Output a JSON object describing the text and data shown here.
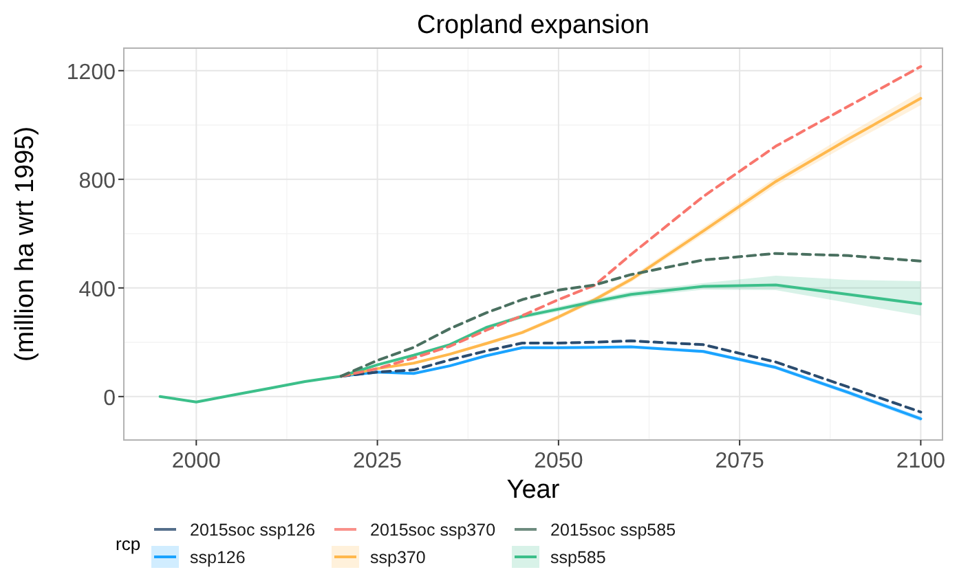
{
  "chart_data": {
    "type": "line",
    "title": "Cropland expansion",
    "xlabel": "Year",
    "ylabel": "(million ha wrt 1995)",
    "legend_title": "rcp",
    "legend": "bottom",
    "grid": true,
    "xlim": [
      1990,
      2103
    ],
    "xticks": [
      2000,
      2025,
      2050,
      2075,
      2100
    ],
    "ylim": [
      -160,
      1283
    ],
    "yticks": [
      0,
      400,
      800,
      1200
    ],
    "x": [
      1995,
      2000,
      2005,
      2010,
      2015,
      2020,
      2025,
      2030,
      2035,
      2040,
      2045,
      2050,
      2055,
      2060,
      2070,
      2080,
      2090,
      2100
    ],
    "series": [
      {
        "name": "2015soc ssp126",
        "color": "#2b4c6f",
        "line_style": "dashed",
        "values": [
          null,
          null,
          null,
          null,
          null,
          75,
          90,
          98,
          135,
          168,
          197,
          197,
          200,
          205,
          191,
          127,
          35,
          -57
        ]
      },
      {
        "name": "2015soc ssp370",
        "color": "#f8766d",
        "line_style": "dashed",
        "values": [
          null,
          null,
          null,
          null,
          null,
          75,
          103,
          142,
          185,
          244,
          298,
          357,
          410,
          523,
          737,
          922,
          1069,
          1215
        ]
      },
      {
        "name": "2015soc ssp585",
        "color": "#4a7060",
        "line_style": "dashed",
        "values": [
          null,
          null,
          null,
          null,
          null,
          75,
          133,
          181,
          250,
          308,
          357,
          392,
          411,
          449,
          503,
          527,
          519,
          499
        ]
      },
      {
        "name": "ssp126",
        "color": "#1aa3ff",
        "line_style": "solid",
        "values": [
          null,
          null,
          null,
          null,
          null,
          75,
          90,
          85,
          113,
          150,
          180,
          180,
          181,
          183,
          166,
          107,
          15,
          -82
        ],
        "lower": [
          null,
          null,
          null,
          null,
          null,
          75,
          87,
          81,
          109,
          146,
          175,
          175,
          176,
          178,
          160,
          100,
          7,
          -91
        ],
        "upper": [
          null,
          null,
          null,
          null,
          null,
          75,
          93,
          89,
          117,
          154,
          185,
          185,
          186,
          188,
          172,
          114,
          23,
          -73
        ]
      },
      {
        "name": "ssp370",
        "color": "#ffb84d",
        "line_style": "solid",
        "values": [
          null,
          null,
          null,
          null,
          null,
          75,
          103,
          123,
          156,
          195,
          236,
          293,
          357,
          431,
          610,
          792,
          948,
          1098
        ],
        "lower": [
          null,
          null,
          null,
          null,
          null,
          75,
          100,
          119,
          151,
          189,
          229,
          285,
          348,
          421,
          597,
          777,
          928,
          1073
        ],
        "upper": [
          null,
          null,
          null,
          null,
          null,
          75,
          106,
          127,
          161,
          201,
          243,
          301,
          366,
          441,
          623,
          807,
          968,
          1123
        ]
      },
      {
        "name": "ssp585",
        "color": "#3cbf8a",
        "line_style": "solid",
        "values": [
          0,
          -20,
          5,
          30,
          55,
          75,
          117,
          152,
          191,
          254,
          295,
          322,
          350,
          376,
          406,
          411,
          376,
          341
        ],
        "lower": [
          0,
          -20,
          5,
          30,
          55,
          75,
          113,
          147,
          185,
          247,
          287,
          313,
          340,
          365,
          394,
          392,
          345,
          298
        ],
        "upper": [
          0,
          -20,
          5,
          30,
          55,
          75,
          121,
          157,
          197,
          261,
          303,
          331,
          360,
          387,
          418,
          445,
          430,
          425
        ]
      }
    ]
  }
}
